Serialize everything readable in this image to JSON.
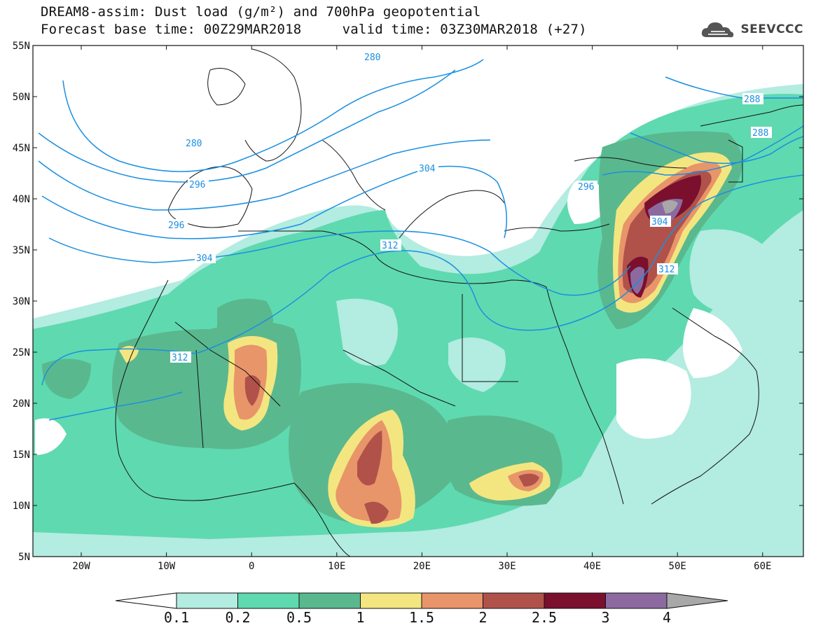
{
  "title": {
    "line1": "DREAM8-assim: Dust load (g/m²) and 700hPa geopotential",
    "line2": "Forecast base time: 00Z29MAR2018     valid time: 03Z30MAR2018 (+27)"
  },
  "logo": {
    "text": "SEEVCCC",
    "icon": "cloud-icon"
  },
  "map": {
    "lat_labels": [
      "55N",
      "50N",
      "45N",
      "40N",
      "35N",
      "30N",
      "25N",
      "20N",
      "15N",
      "10N",
      "5N"
    ],
    "lon_labels": [
      "20W",
      "10W",
      "0",
      "10E",
      "20E",
      "30E",
      "40E",
      "50E",
      "60E"
    ],
    "contour_labels": [
      "280",
      "280",
      "288",
      "296",
      "304",
      "312",
      "312",
      "304",
      "312",
      "304",
      "296",
      "288",
      "296"
    ],
    "contour_color": "#1a8fe0"
  },
  "colorbar": {
    "labels": [
      "0.1",
      "0.2",
      "0.5",
      "1",
      "1.5",
      "2",
      "2.5",
      "3",
      "4"
    ],
    "colors": [
      "#ffffff",
      "#b3ece0",
      "#5fd9b0",
      "#5ab88e",
      "#f3e680",
      "#e8956a",
      "#b0524a",
      "#7a0f2e",
      "#8c6aa0",
      "#a8a8a8"
    ]
  }
}
